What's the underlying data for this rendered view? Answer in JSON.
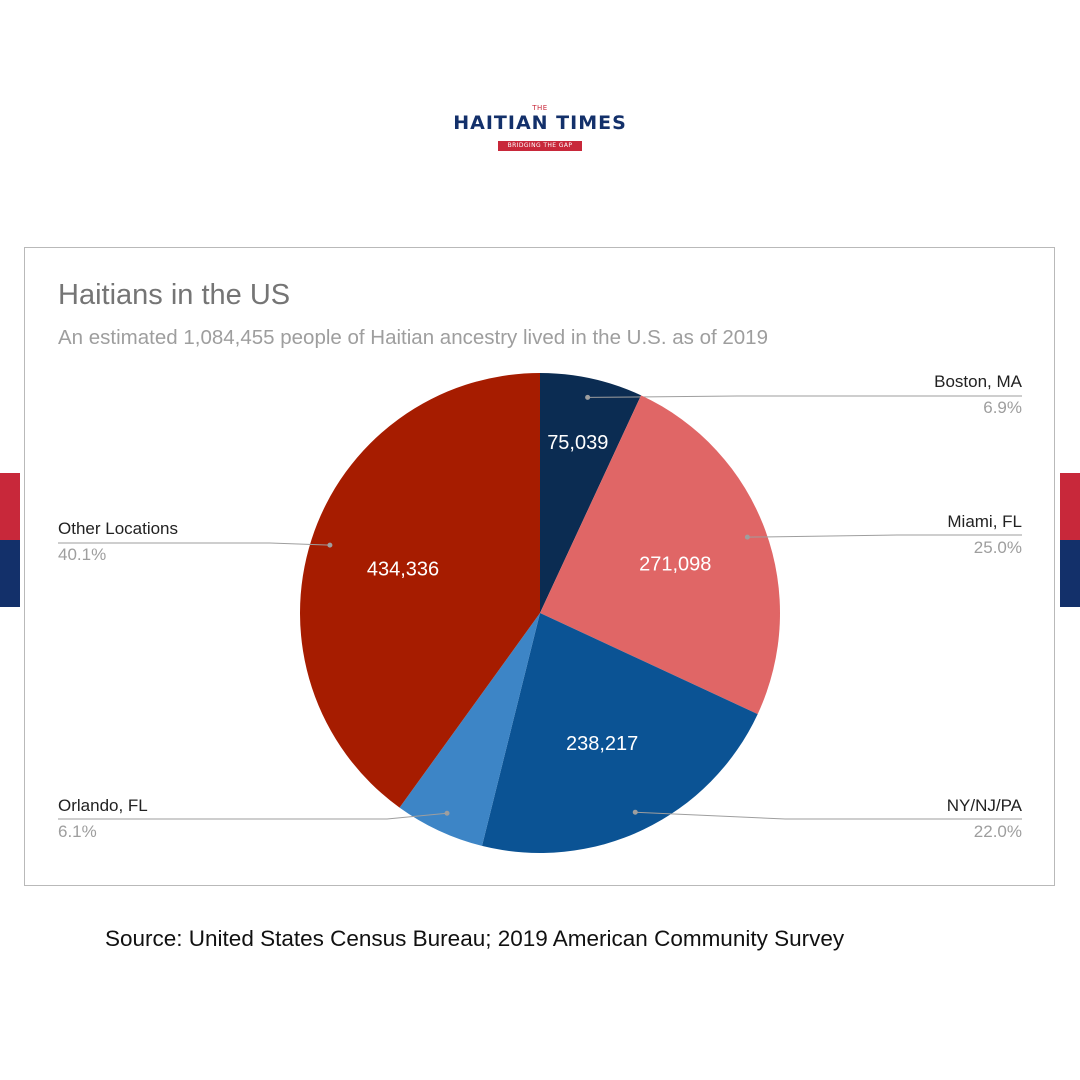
{
  "brand": {
    "logo_top": "THE",
    "logo_name": "HAITIAN TIMES",
    "logo_tagline": "BRIDGING THE GAP",
    "red": "#c8283a",
    "navy": "#13306a"
  },
  "chart_data": {
    "type": "pie",
    "title": "Haitians in the US",
    "subtitle": "An estimated 1,084,455 people of Haitian ancestry lived in the U.S. as of 2019",
    "legend": "labels-outside",
    "slices": [
      {
        "label": "Boston, MA",
        "value": 75039,
        "value_label": "75,039",
        "percent": "6.9%",
        "color": "#0b2c52"
      },
      {
        "label": "Miami, FL",
        "value": 271098,
        "value_label": "271,098",
        "percent": "25.0%",
        "color": "#e06666"
      },
      {
        "label": "NY/NJ/PA",
        "value": 238217,
        "value_label": "238,217",
        "percent": "22.0%",
        "color": "#0b5394"
      },
      {
        "label": "Orlando, FL",
        "value": 65765,
        "value_label": "",
        "percent": "6.1%",
        "color": "#3d85c6"
      },
      {
        "label": "Other Locations",
        "value": 434336,
        "value_label": "434,336",
        "percent": "40.1%",
        "color": "#a61c00"
      }
    ]
  },
  "source": "Source: United States Census Bureau; 2019 American Community Survey"
}
